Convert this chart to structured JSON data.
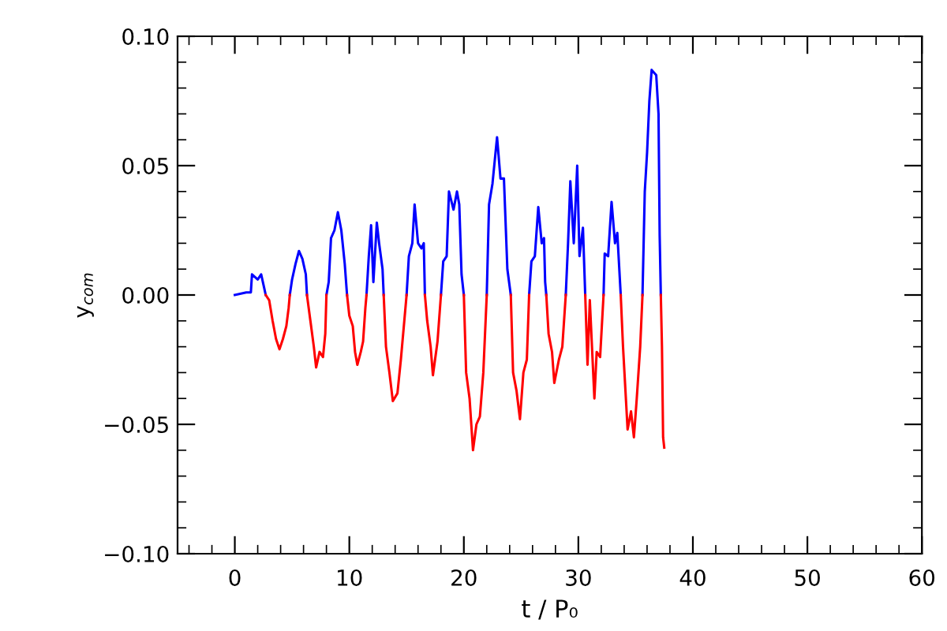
{
  "chart_data": {
    "type": "line",
    "xlabel": "t / P₀",
    "ylabel": "y$_{com}$",
    "xlim": [
      -5,
      60
    ],
    "ylim": [
      -0.1,
      0.1
    ],
    "xticks": [
      {
        "value": -4,
        "label": null
      },
      {
        "value": -2,
        "label": null
      },
      0,
      {
        "value": 2,
        "label": null
      },
      {
        "value": 4,
        "label": null
      },
      {
        "value": 6,
        "label": null
      },
      {
        "value": 8,
        "label": null
      },
      10,
      {
        "value": 12,
        "label": null
      },
      {
        "value": 14,
        "label": null
      },
      {
        "value": 16,
        "label": null
      },
      {
        "value": 18,
        "label": null
      },
      20,
      {
        "value": 22,
        "label": null
      },
      {
        "value": 24,
        "label": null
      },
      {
        "value": 26,
        "label": null
      },
      {
        "value": 28,
        "label": null
      },
      30,
      {
        "value": 32,
        "label": null
      },
      {
        "value": 34,
        "label": null
      },
      {
        "value": 36,
        "label": null
      },
      {
        "value": 38,
        "label": null
      },
      40,
      {
        "value": 42,
        "label": null
      },
      {
        "value": 44,
        "label": null
      },
      {
        "value": 46,
        "label": null
      },
      {
        "value": 48,
        "label": null
      },
      50,
      {
        "value": 52,
        "label": null
      },
      {
        "value": 54,
        "label": null
      },
      {
        "value": 56,
        "label": null
      },
      {
        "value": 58,
        "label": null
      },
      60
    ],
    "yticks": [
      {
        "value": -0.1,
        "label": "−0.10"
      },
      {
        "value": -0.09,
        "label": null
      },
      {
        "value": -0.08,
        "label": null
      },
      {
        "value": -0.07,
        "label": null
      },
      {
        "value": -0.06,
        "label": null
      },
      {
        "value": -0.05,
        "label": "−0.05"
      },
      {
        "value": -0.04,
        "label": null
      },
      {
        "value": -0.03,
        "label": null
      },
      {
        "value": -0.02,
        "label": null
      },
      {
        "value": -0.01,
        "label": null
      },
      {
        "value": 0,
        "label": "0.00"
      },
      {
        "value": 0.01,
        "label": null
      },
      {
        "value": 0.02,
        "label": null
      },
      {
        "value": 0.03,
        "label": null
      },
      {
        "value": 0.04,
        "label": null
      },
      {
        "value": 0.05,
        "label": "0.05"
      },
      {
        "value": 0.06,
        "label": null
      },
      {
        "value": 0.07,
        "label": null
      },
      {
        "value": 0.08,
        "label": null
      },
      {
        "value": 0.09,
        "label": null
      },
      {
        "value": 0.1,
        "label": "0.10"
      }
    ],
    "grid": false,
    "line_style": "solid",
    "marker": "none",
    "x": [
      0,
      1.0,
      1.4,
      1.5,
      2.0,
      2.3,
      2.5,
      2.7,
      3.0,
      3.3,
      3.6,
      3.9,
      4.2,
      4.5,
      4.7,
      4.8,
      5.0,
      5.3,
      5.6,
      5.9,
      6.2,
      6.3,
      6.6,
      6.9,
      7.1,
      7.4,
      7.7,
      7.9,
      8.0,
      8.2,
      8.4,
      8.7,
      9.0,
      9.3,
      9.6,
      9.8,
      10.0,
      10.3,
      10.5,
      10.7,
      11.0,
      11.2,
      11.4,
      11.5,
      11.7,
      11.9,
      12.1,
      12.4,
      12.6,
      12.9,
      13.0,
      13.2,
      13.5,
      13.8,
      14.2,
      14.5,
      14.8,
      15.0,
      15.2,
      15.5,
      15.7,
      16.0,
      16.3,
      16.5,
      16.6,
      16.8,
      17.1,
      17.3,
      17.7,
      18.0,
      18.2,
      18.5,
      18.7,
      19.1,
      19.4,
      19.6,
      19.8,
      20.0,
      20.2,
      20.5,
      20.8,
      21.1,
      21.4,
      21.7,
      22.0,
      22.2,
      22.5,
      22.9,
      23.2,
      23.5,
      23.8,
      24.1,
      24.3,
      24.6,
      24.9,
      25.2,
      25.5,
      25.7,
      25.9,
      26.2,
      26.5,
      26.8,
      27.0,
      27.1,
      27.2,
      27.4,
      27.7,
      27.9,
      28.3,
      28.6,
      28.9,
      29.1,
      29.3,
      29.6,
      29.9,
      30.1,
      30.4,
      30.6,
      30.8,
      31.0,
      31.4,
      31.6,
      31.9,
      32.2,
      32.3,
      32.6,
      32.9,
      33.2,
      33.4,
      33.7,
      33.9,
      34.3,
      34.6,
      34.85,
      35.1,
      35.4,
      35.6,
      35.8,
      36.0,
      36.2,
      36.4,
      36.8,
      37.0,
      37.1,
      37.2,
      37.3,
      37.4,
      37.5
    ],
    "series": [
      {
        "color": "#0000ff",
        "values": [
          0,
          0.001,
          0.001,
          0.008,
          0.006,
          0.008,
          0.004,
          0,
          null,
          null,
          null,
          null,
          null,
          null,
          null,
          0,
          0.006,
          0.012,
          0.017,
          0.014,
          0.008,
          0,
          null,
          null,
          null,
          null,
          null,
          null,
          0,
          0.005,
          0.022,
          0.025,
          0.032,
          0.025,
          0.012,
          0,
          null,
          null,
          null,
          null,
          null,
          null,
          null,
          0,
          0.015,
          0.027,
          0.005,
          0.028,
          0.02,
          0.01,
          0,
          null,
          null,
          null,
          null,
          null,
          null,
          0,
          0.015,
          0.02,
          0.035,
          0.02,
          0.018,
          0.02,
          0,
          null,
          null,
          null,
          null,
          0,
          0.013,
          0.015,
          0.04,
          0.033,
          0.04,
          0.035,
          0.008,
          0,
          null,
          null,
          null,
          null,
          null,
          null,
          0,
          0.035,
          0.043,
          0.061,
          0.045,
          0.045,
          0.01,
          0,
          null,
          null,
          null,
          null,
          null,
          0,
          0.013,
          0.015,
          0.034,
          0.02,
          0.022,
          0.005,
          0,
          null,
          null,
          null,
          null,
          null,
          0,
          0.02,
          0.044,
          0.02,
          0.05,
          0.015,
          0.026,
          0,
          null,
          null,
          null,
          null,
          null,
          0,
          0.016,
          0.015,
          0.036,
          0.02,
          0.024,
          0,
          null,
          null,
          null,
          null,
          null,
          null,
          0,
          0.04,
          0.055,
          0.075,
          0.087,
          0.085,
          0.07,
          0.023,
          0,
          null,
          null,
          null
        ]
      },
      {
        "color": "#ff0000",
        "values": [
          null,
          null,
          null,
          null,
          null,
          null,
          null,
          0,
          -0.002,
          -0.01,
          -0.017,
          -0.021,
          -0.017,
          -0.012,
          -0.005,
          0,
          null,
          null,
          null,
          null,
          null,
          0,
          -0.01,
          -0.02,
          -0.028,
          -0.022,
          -0.024,
          -0.015,
          0,
          null,
          null,
          null,
          null,
          null,
          null,
          0,
          -0.008,
          -0.012,
          -0.022,
          -0.027,
          -0.022,
          -0.018,
          -0.005,
          0,
          null,
          null,
          null,
          null,
          null,
          null,
          0,
          -0.02,
          -0.03,
          -0.041,
          -0.038,
          -0.025,
          -0.01,
          0,
          null,
          null,
          null,
          null,
          null,
          null,
          0,
          -0.01,
          -0.02,
          -0.031,
          -0.018,
          0,
          null,
          null,
          null,
          null,
          null,
          null,
          null,
          0,
          -0.03,
          -0.04,
          -0.06,
          -0.05,
          -0.047,
          -0.03,
          0,
          null,
          null,
          null,
          null,
          null,
          null,
          0,
          -0.03,
          -0.037,
          -0.048,
          -0.03,
          -0.025,
          0,
          null,
          null,
          null,
          null,
          null,
          null,
          0,
          -0.015,
          -0.022,
          -0.034,
          -0.025,
          -0.02,
          0,
          null,
          null,
          null,
          null,
          null,
          null,
          0,
          -0.027,
          -0.002,
          -0.04,
          -0.022,
          -0.024,
          0,
          null,
          null,
          null,
          null,
          null,
          0,
          -0.02,
          -0.052,
          -0.045,
          -0.055,
          -0.04,
          -0.02,
          0,
          null,
          null,
          null,
          null,
          null,
          null,
          null,
          0,
          -0.02,
          -0.055,
          -0.059
        ]
      }
    ]
  }
}
